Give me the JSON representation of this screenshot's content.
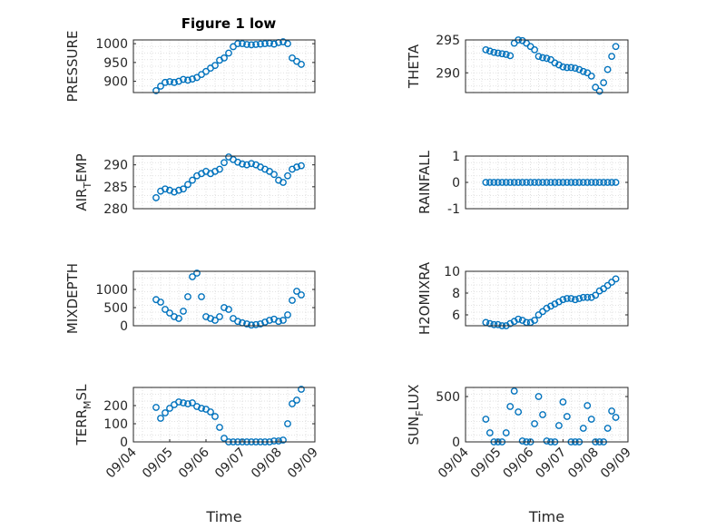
{
  "figure": {
    "title": "Figure 1 low",
    "colors": {
      "marker": "#0072BD",
      "axes": "#262626",
      "grid": "#d9d9d9",
      "background": "#ffffff"
    }
  },
  "chart_data": [
    {
      "type": "scatter",
      "ylabel": "PRESSURE",
      "ylim": [
        870,
        1010
      ],
      "yticks": [
        900,
        950,
        1000
      ],
      "ytick_labels": [
        "900",
        "950",
        "1000"
      ],
      "xlim": [
        "09/04",
        "09/09"
      ],
      "x_ticks_shown": false,
      "x": [
        "09/04 15:00",
        "09/04 18:00",
        "09/04 21:00",
        "09/05 00:00",
        "09/05 03:00",
        "09/05 06:00",
        "09/05 09:00",
        "09/05 12:00",
        "09/05 15:00",
        "09/05 18:00",
        "09/05 21:00",
        "09/06 00:00",
        "09/06 03:00",
        "09/06 06:00",
        "09/06 09:00",
        "09/06 12:00",
        "09/06 15:00",
        "09/06 18:00",
        "09/06 21:00",
        "09/07 00:00",
        "09/07 03:00",
        "09/07 06:00",
        "09/07 09:00",
        "09/07 12:00",
        "09/07 15:00",
        "09/07 18:00",
        "09/07 21:00",
        "09/08 00:00",
        "09/08 03:00",
        "09/08 06:00",
        "09/08 09:00",
        "09/08 12:00",
        "09/08 15:00"
      ],
      "values": [
        875,
        887,
        897,
        899,
        897,
        900,
        905,
        903,
        906,
        910,
        918,
        926,
        935,
        942,
        956,
        962,
        975,
        992,
        1000,
        1000,
        998,
        997,
        998,
        999,
        1000,
        1001,
        999,
        1003,
        1005,
        1000,
        962,
        953,
        945
      ]
    },
    {
      "type": "scatter",
      "ylabel": "THETA",
      "ylim": [
        287,
        295
      ],
      "yticks": [
        290,
        295
      ],
      "ytick_labels": [
        "290",
        "295"
      ],
      "xlim": [
        "09/04",
        "09/09"
      ],
      "x_ticks_shown": false,
      "x": [
        "09/04 15:00",
        "09/04 18:00",
        "09/04 21:00",
        "09/05 00:00",
        "09/05 03:00",
        "09/05 06:00",
        "09/05 09:00",
        "09/05 12:00",
        "09/05 15:00",
        "09/05 18:00",
        "09/05 21:00",
        "09/06 00:00",
        "09/06 03:00",
        "09/06 06:00",
        "09/06 09:00",
        "09/06 12:00",
        "09/06 15:00",
        "09/06 18:00",
        "09/06 21:00",
        "09/07 00:00",
        "09/07 03:00",
        "09/07 06:00",
        "09/07 09:00",
        "09/07 12:00",
        "09/07 15:00",
        "09/07 18:00",
        "09/07 21:00",
        "09/08 00:00",
        "09/08 03:00",
        "09/08 06:00",
        "09/08 09:00",
        "09/08 12:00",
        "09/08 15:00"
      ],
      "values": [
        293.5,
        293.3,
        293.1,
        293.0,
        292.9,
        292.8,
        292.6,
        294.5,
        295.0,
        294.9,
        294.5,
        294.0,
        293.5,
        292.5,
        292.3,
        292.2,
        292.0,
        291.5,
        291.2,
        290.9,
        290.8,
        290.8,
        290.7,
        290.5,
        290.2,
        290.0,
        289.5,
        287.8,
        287.2,
        288.5,
        290.5,
        292.5,
        294.0
      ]
    },
    {
      "type": "scatter",
      "ylabel": "AIR_TEMP",
      "ylim": [
        280,
        292
      ],
      "yticks": [
        280,
        285,
        290
      ],
      "ytick_labels": [
        "280",
        "285",
        "290"
      ],
      "xlim": [
        "09/04",
        "09/09"
      ],
      "x_ticks_shown": false,
      "x": [
        "09/04 15:00",
        "09/04 18:00",
        "09/04 21:00",
        "09/05 00:00",
        "09/05 03:00",
        "09/05 06:00",
        "09/05 09:00",
        "09/05 12:00",
        "09/05 15:00",
        "09/05 18:00",
        "09/05 21:00",
        "09/06 00:00",
        "09/06 03:00",
        "09/06 06:00",
        "09/06 09:00",
        "09/06 12:00",
        "09/06 15:00",
        "09/06 18:00",
        "09/06 21:00",
        "09/07 00:00",
        "09/07 03:00",
        "09/07 06:00",
        "09/07 09:00",
        "09/07 12:00",
        "09/07 15:00",
        "09/07 18:00",
        "09/07 21:00",
        "09/08 00:00",
        "09/08 03:00",
        "09/08 06:00",
        "09/08 09:00",
        "09/08 12:00",
        "09/08 15:00"
      ],
      "values": [
        282.5,
        284.0,
        284.5,
        284.2,
        283.8,
        284.2,
        284.5,
        285.5,
        286.5,
        287.5,
        288.0,
        288.5,
        288.0,
        288.5,
        289.0,
        290.5,
        291.8,
        291.2,
        290.6,
        290.2,
        290.0,
        290.3,
        290.0,
        289.5,
        289.0,
        288.5,
        287.8,
        286.5,
        286.0,
        287.5,
        289.0,
        289.5,
        289.8
      ]
    },
    {
      "type": "scatter",
      "ylabel": "RAINFALL",
      "ylim": [
        -1,
        1
      ],
      "yticks": [
        -1,
        0,
        1
      ],
      "ytick_labels": [
        "-1",
        "0",
        "1"
      ],
      "xlim": [
        "09/04",
        "09/09"
      ],
      "x_ticks_shown": false,
      "x": [
        "09/04 15:00",
        "09/04 18:00",
        "09/04 21:00",
        "09/05 00:00",
        "09/05 03:00",
        "09/05 06:00",
        "09/05 09:00",
        "09/05 12:00",
        "09/05 15:00",
        "09/05 18:00",
        "09/05 21:00",
        "09/06 00:00",
        "09/06 03:00",
        "09/06 06:00",
        "09/06 09:00",
        "09/06 12:00",
        "09/06 15:00",
        "09/06 18:00",
        "09/06 21:00",
        "09/07 00:00",
        "09/07 03:00",
        "09/07 06:00",
        "09/07 09:00",
        "09/07 12:00",
        "09/07 15:00",
        "09/07 18:00",
        "09/07 21:00",
        "09/08 00:00",
        "09/08 03:00",
        "09/08 06:00",
        "09/08 09:00",
        "09/08 12:00",
        "09/08 15:00"
      ],
      "values": [
        0,
        0,
        0,
        0,
        0,
        0,
        0,
        0,
        0,
        0,
        0,
        0,
        0,
        0,
        0,
        0,
        0,
        0,
        0,
        0,
        0,
        0,
        0,
        0,
        0,
        0,
        0,
        0,
        0,
        0,
        0,
        0,
        0
      ]
    },
    {
      "type": "scatter",
      "ylabel": "MIXDEPTH",
      "ylim": [
        0,
        1500
      ],
      "yticks": [
        0,
        500,
        1000
      ],
      "ytick_labels": [
        "0",
        "500",
        "1000"
      ],
      "xlim": [
        "09/04",
        "09/09"
      ],
      "x_ticks_shown": false,
      "x": [
        "09/04 15:00",
        "09/04 18:00",
        "09/04 21:00",
        "09/05 00:00",
        "09/05 03:00",
        "09/05 06:00",
        "09/05 09:00",
        "09/05 12:00",
        "09/05 15:00",
        "09/05 18:00",
        "09/05 21:00",
        "09/06 00:00",
        "09/06 03:00",
        "09/06 06:00",
        "09/06 09:00",
        "09/06 12:00",
        "09/06 15:00",
        "09/06 18:00",
        "09/06 21:00",
        "09/07 00:00",
        "09/07 03:00",
        "09/07 06:00",
        "09/07 09:00",
        "09/07 12:00",
        "09/07 15:00",
        "09/07 18:00",
        "09/07 21:00",
        "09/08 00:00",
        "09/08 03:00",
        "09/08 06:00",
        "09/08 09:00",
        "09/08 12:00",
        "09/08 15:00"
      ],
      "values": [
        720,
        650,
        450,
        350,
        250,
        200,
        400,
        800,
        1350,
        1450,
        800,
        250,
        200,
        150,
        250,
        500,
        450,
        200,
        120,
        80,
        50,
        20,
        30,
        50,
        100,
        150,
        180,
        120,
        150,
        300,
        700,
        950,
        850
      ]
    },
    {
      "type": "scatter",
      "ylabel": "H2OMIXRA",
      "ylim": [
        5,
        10
      ],
      "yticks": [
        6,
        8,
        10
      ],
      "ytick_labels": [
        "6",
        "8",
        "10"
      ],
      "xlim": [
        "09/04",
        "09/09"
      ],
      "x_ticks_shown": false,
      "x": [
        "09/04 15:00",
        "09/04 18:00",
        "09/04 21:00",
        "09/05 00:00",
        "09/05 03:00",
        "09/05 06:00",
        "09/05 09:00",
        "09/05 12:00",
        "09/05 15:00",
        "09/05 18:00",
        "09/05 21:00",
        "09/06 00:00",
        "09/06 03:00",
        "09/06 06:00",
        "09/06 09:00",
        "09/06 12:00",
        "09/06 15:00",
        "09/06 18:00",
        "09/06 21:00",
        "09/07 00:00",
        "09/07 03:00",
        "09/07 06:00",
        "09/07 09:00",
        "09/07 12:00",
        "09/07 15:00",
        "09/07 18:00",
        "09/07 21:00",
        "09/08 00:00",
        "09/08 03:00",
        "09/08 06:00",
        "09/08 09:00",
        "09/08 12:00",
        "09/08 15:00"
      ],
      "values": [
        5.3,
        5.2,
        5.1,
        5.1,
        5.0,
        5.0,
        5.2,
        5.4,
        5.6,
        5.5,
        5.3,
        5.3,
        5.5,
        6.0,
        6.3,
        6.6,
        6.8,
        7.0,
        7.2,
        7.4,
        7.5,
        7.5,
        7.4,
        7.5,
        7.6,
        7.6,
        7.6,
        7.8,
        8.2,
        8.4,
        8.7,
        9.0,
        9.3
      ]
    },
    {
      "type": "scatter",
      "ylabel": "TERR_MSL",
      "ylim": [
        0,
        300
      ],
      "yticks": [
        0,
        100,
        200
      ],
      "ytick_labels": [
        "0",
        "100",
        "200"
      ],
      "xlim": [
        "09/04",
        "09/09"
      ],
      "xticks": [
        "09/04",
        "09/05",
        "09/06",
        "09/07",
        "09/08",
        "09/09"
      ],
      "xlabel": "Time",
      "x": [
        "09/04 15:00",
        "09/04 18:00",
        "09/04 21:00",
        "09/05 00:00",
        "09/05 03:00",
        "09/05 06:00",
        "09/05 09:00",
        "09/05 12:00",
        "09/05 15:00",
        "09/05 18:00",
        "09/05 21:00",
        "09/06 00:00",
        "09/06 03:00",
        "09/06 06:00",
        "09/06 09:00",
        "09/06 12:00",
        "09/06 15:00",
        "09/06 18:00",
        "09/06 21:00",
        "09/07 00:00",
        "09/07 03:00",
        "09/07 06:00",
        "09/07 09:00",
        "09/07 12:00",
        "09/07 15:00",
        "09/07 18:00",
        "09/07 21:00",
        "09/08 00:00",
        "09/08 03:00",
        "09/08 06:00",
        "09/08 09:00",
        "09/08 12:00",
        "09/08 15:00"
      ],
      "values": [
        190,
        130,
        160,
        185,
        205,
        220,
        215,
        210,
        215,
        195,
        185,
        180,
        165,
        140,
        80,
        20,
        0,
        0,
        0,
        0,
        0,
        0,
        0,
        0,
        0,
        0,
        5,
        5,
        10,
        100,
        210,
        230,
        290
      ]
    },
    {
      "type": "scatter",
      "ylabel": "SUN_FLUX",
      "ylim": [
        0,
        600
      ],
      "yticks": [
        0,
        500
      ],
      "ytick_labels": [
        "0",
        "500"
      ],
      "xlim": [
        "09/04",
        "09/09"
      ],
      "xticks": [
        "09/04",
        "09/05",
        "09/06",
        "09/07",
        "09/08",
        "09/09"
      ],
      "xlabel": "Time",
      "x": [
        "09/04 15:00",
        "09/04 18:00",
        "09/04 21:00",
        "09/05 00:00",
        "09/05 03:00",
        "09/05 06:00",
        "09/05 09:00",
        "09/05 12:00",
        "09/05 15:00",
        "09/05 18:00",
        "09/05 21:00",
        "09/06 00:00",
        "09/06 03:00",
        "09/06 06:00",
        "09/06 09:00",
        "09/06 12:00",
        "09/06 15:00",
        "09/06 18:00",
        "09/06 21:00",
        "09/07 00:00",
        "09/07 03:00",
        "09/07 06:00",
        "09/07 09:00",
        "09/07 12:00",
        "09/07 15:00",
        "09/07 18:00",
        "09/07 21:00",
        "09/08 00:00",
        "09/08 03:00",
        "09/08 06:00",
        "09/08 09:00",
        "09/08 12:00",
        "09/08 15:00"
      ],
      "values": [
        250,
        100,
        0,
        0,
        0,
        100,
        390,
        560,
        330,
        10,
        0,
        0,
        200,
        500,
        300,
        10,
        0,
        0,
        180,
        440,
        280,
        0,
        0,
        0,
        150,
        400,
        250,
        0,
        0,
        0,
        150,
        340,
        270
      ]
    }
  ]
}
